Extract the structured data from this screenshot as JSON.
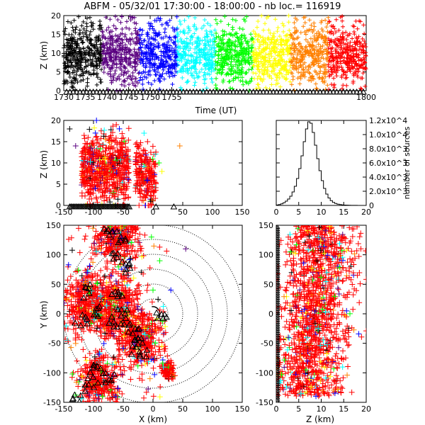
{
  "chart_data": [
    {
      "id": "time_height",
      "type": "scatter",
      "title": "ABFM - 05/32/01 17:30:00 - 18:00:00 - nb loc.= 116919",
      "xlabel": "Time (UT)",
      "ylabel": "Z (km)",
      "xlim": [
        1730,
        1800
      ],
      "ylim": [
        0,
        20
      ],
      "x_ticks": [
        "1730",
        "1735",
        "1740",
        "1745",
        "1750",
        "1755",
        "1800"
      ],
      "y_ticks": [
        "0",
        "5",
        "10",
        "15",
        "20"
      ],
      "colormap": [
        "#000000",
        "#5a0080",
        "#0000ff",
        "#00ffff",
        "#00ff00",
        "#ffff00",
        "#ff8000",
        "#ff0000"
      ],
      "description_density": "continuous band of lightning sources, densest between 4 and 15 km, colored by time"
    },
    {
      "id": "x_height",
      "type": "scatter",
      "xlabel": "",
      "ylabel": "Z (km)",
      "xlim": [
        -150,
        150
      ],
      "ylim": [
        0,
        20
      ],
      "x_ticks": [
        "-150",
        "-100",
        "-50",
        "0",
        "50",
        "100",
        "150"
      ],
      "y_ticks": [
        "0",
        "5",
        "10",
        "15",
        "20"
      ],
      "clusters": [
        {
          "x_min": -120,
          "x_max": -40,
          "z_min": 0,
          "z_max": 18
        },
        {
          "x_min": -30,
          "x_max": 5,
          "z_min": 0,
          "z_max": 14
        }
      ]
    },
    {
      "id": "height_histogram",
      "type": "bar",
      "xlabel": "",
      "ylabel": "number of sources",
      "xlim": [
        0,
        20
      ],
      "ylim": [
        0,
        12000
      ],
      "x_ticks": [
        "0",
        "5",
        "10",
        "15",
        "20"
      ],
      "y_ticks": [
        "0",
        "2.0x10^3",
        "4.0x10^3",
        "6.0x10^3",
        "8.0x10^3",
        "1.0x10^4",
        "1.2x10^4"
      ],
      "bin_width": 0.5,
      "values": [
        60,
        120,
        220,
        380,
        600,
        900,
        1300,
        1900,
        2700,
        3800,
        5200,
        7000,
        9000,
        10800,
        11800,
        11600,
        10300,
        8500,
        6600,
        4900,
        3500,
        2400,
        1600,
        1050,
        680,
        430,
        280,
        180,
        120,
        80,
        55,
        38,
        26,
        18,
        12,
        8,
        5,
        3,
        2,
        1
      ]
    },
    {
      "id": "plan_view",
      "type": "scatter",
      "xlabel": "X (km)",
      "ylabel": "Y (km)",
      "xlim": [
        -150,
        150
      ],
      "ylim": [
        -150,
        150
      ],
      "x_ticks": [
        "-150",
        "-100",
        "-50",
        "0",
        "50",
        "100",
        "150"
      ],
      "y_ticks": [
        "-150",
        "-100",
        "-50",
        "0",
        "50",
        "100",
        "150"
      ],
      "range_rings_km": [
        25,
        50,
        75,
        100,
        125,
        150
      ],
      "storm_cells": [
        {
          "x": -60,
          "y": 130,
          "size": 25
        },
        {
          "x": -110,
          "y": 20,
          "size": 30
        },
        {
          "x": -60,
          "y": 10,
          "size": 30
        },
        {
          "x": -20,
          "y": -40,
          "size": 25
        },
        {
          "x": -90,
          "y": -110,
          "size": 25
        },
        {
          "x": 25,
          "y": -95,
          "size": 8
        }
      ]
    },
    {
      "id": "height_y",
      "type": "scatter",
      "xlabel": "Z (km)",
      "ylabel": "",
      "xlim": [
        0,
        20
      ],
      "ylim": [
        -150,
        150
      ],
      "x_ticks": [
        "0",
        "5",
        "10",
        "15",
        "20"
      ],
      "y_ticks": [
        "-150",
        "-100",
        "-50",
        "0",
        "50",
        "100",
        "150"
      ]
    }
  ]
}
